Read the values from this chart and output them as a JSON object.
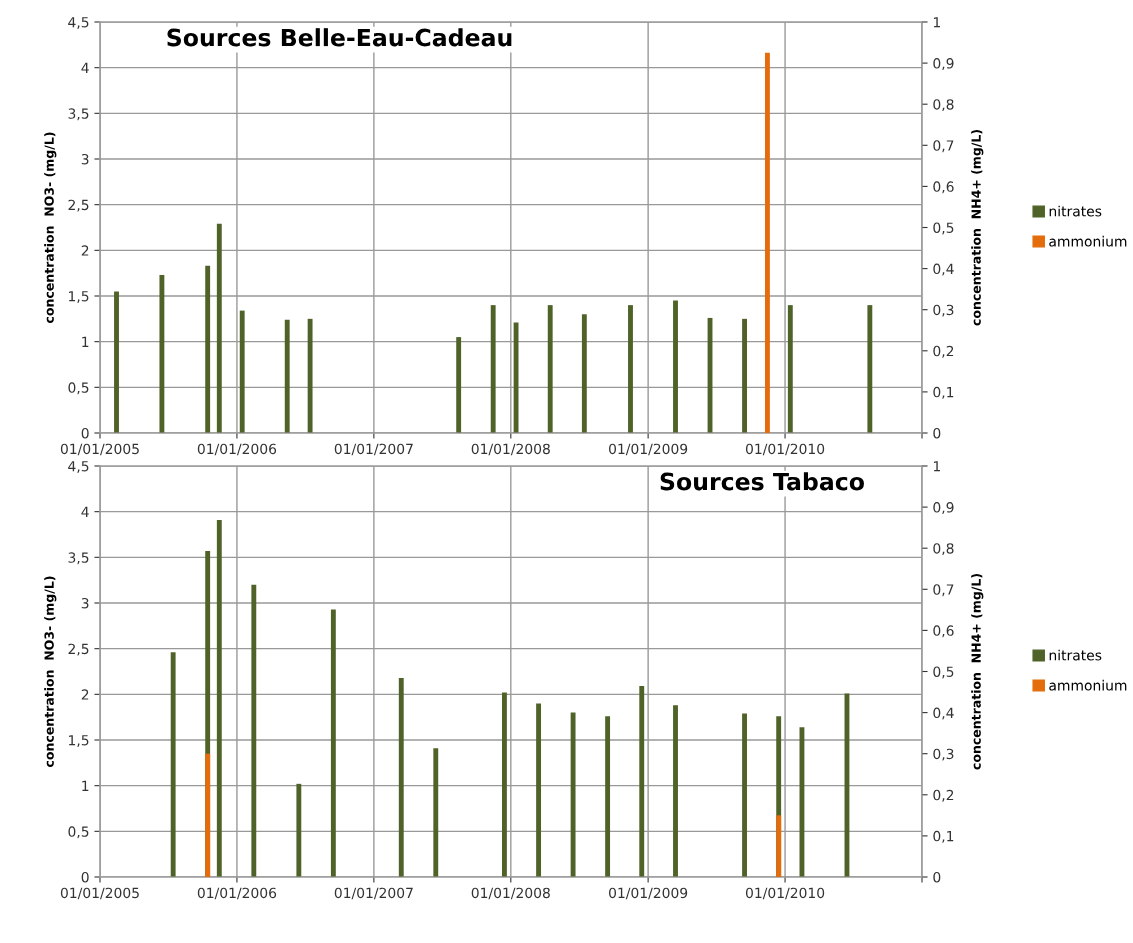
{
  "chart_data": [
    {
      "type": "bar",
      "title": "Sources Belle-Eau-Cadeau",
      "ylabel": "concentration  NO3- (mg/L)",
      "y2label": "concentration  NH4+ (mg/L)",
      "xlim": [
        "2005-01-01",
        "2011-01-01"
      ],
      "xticks": [
        {
          "value": "2005-01-01",
          "label": "01/01/2005"
        },
        {
          "value": "2006-01-01",
          "label": "01/01/2006"
        },
        {
          "value": "2007-01-01",
          "label": "01/01/2007"
        },
        {
          "value": "2008-01-01",
          "label": "01/01/2008"
        },
        {
          "value": "2009-01-01",
          "label": "01/01/2009"
        },
        {
          "value": "2010-01-01",
          "label": "01/01/2010"
        },
        {
          "value": "2011-01-01",
          "label": null
        }
      ],
      "ylim": [
        0,
        4.5
      ],
      "yticks": [
        0,
        {
          "value": 0.5,
          "label": "0,5"
        },
        1,
        {
          "value": 1.5,
          "label": "1,5"
        },
        2,
        {
          "value": 2.5,
          "label": "2,5"
        },
        3,
        {
          "value": 3.5,
          "label": "3,5"
        },
        4,
        {
          "value": 4.5,
          "label": "4,5"
        }
      ],
      "y2lim": [
        0,
        1
      ],
      "y2ticks": [
        0,
        {
          "value": 0.1,
          "label": "0,1"
        },
        {
          "value": 0.2,
          "label": "0,2"
        },
        {
          "value": 0.3,
          "label": "0,3"
        },
        {
          "value": 0.4,
          "label": "0,4"
        },
        {
          "value": 0.5,
          "label": "0,5"
        },
        {
          "value": 0.6,
          "label": "0,6"
        },
        {
          "value": 0.7,
          "label": "0,7"
        },
        {
          "value": 0.8,
          "label": "0,8"
        },
        {
          "value": 0.9,
          "label": "0,9"
        },
        1
      ],
      "grid": true,
      "legend": "right",
      "series": [
        {
          "name": "nitrates",
          "color": "#4f6228",
          "axis": "y",
          "x": [
            "2005-02-14",
            "2005-06-15",
            "2005-10-15",
            "2005-11-15",
            "2006-01-15",
            "2006-05-15",
            "2006-07-15",
            "2007-08-15",
            "2007-11-15",
            "2008-01-15",
            "2008-04-15",
            "2008-07-15",
            "2008-11-15",
            "2009-03-15",
            "2009-06-15",
            "2009-09-15",
            "2010-01-15",
            "2010-08-15"
          ],
          "values": [
            1.55,
            1.73,
            1.83,
            2.29,
            1.34,
            1.24,
            1.25,
            1.05,
            1.4,
            1.21,
            1.4,
            1.3,
            1.4,
            1.45,
            1.26,
            1.25,
            1.4,
            1.4
          ]
        },
        {
          "name": "ammonium",
          "color": "#e46c0a",
          "axis": "y2",
          "x": [
            "2009-11-15"
          ],
          "values": [
            0.925
          ]
        }
      ]
    },
    {
      "type": "bar",
      "title": "Sources Tabaco",
      "ylabel": "concentration  NO3- (mg/L)",
      "y2label": "concentration  NH4+ (mg/L)",
      "xlim": [
        "2005-01-01",
        "2011-01-01"
      ],
      "xticks": [
        {
          "value": "2005-01-01",
          "label": "01/01/2005"
        },
        {
          "value": "2006-01-01",
          "label": "01/01/2006"
        },
        {
          "value": "2007-01-01",
          "label": "01/01/2007"
        },
        {
          "value": "2008-01-01",
          "label": "01/01/2008"
        },
        {
          "value": "2009-01-01",
          "label": "01/01/2009"
        },
        {
          "value": "2010-01-01",
          "label": "01/01/2010"
        },
        {
          "value": "2011-01-01",
          "label": null
        }
      ],
      "ylim": [
        0,
        4.5
      ],
      "yticks": [
        0,
        {
          "value": 0.5,
          "label": "0,5"
        },
        1,
        {
          "value": 1.5,
          "label": "1,5"
        },
        2,
        {
          "value": 2.5,
          "label": "2,5"
        },
        3,
        {
          "value": 3.5,
          "label": "3,5"
        },
        4,
        {
          "value": 4.5,
          "label": "4,5"
        }
      ],
      "y2lim": [
        0,
        1
      ],
      "y2ticks": [
        0,
        {
          "value": 0.1,
          "label": "0,1"
        },
        {
          "value": 0.2,
          "label": "0,2"
        },
        {
          "value": 0.3,
          "label": "0,3"
        },
        {
          "value": 0.4,
          "label": "0,4"
        },
        {
          "value": 0.5,
          "label": "0,5"
        },
        {
          "value": 0.6,
          "label": "0,6"
        },
        {
          "value": 0.7,
          "label": "0,7"
        },
        {
          "value": 0.8,
          "label": "0,8"
        },
        {
          "value": 0.9,
          "label": "0,9"
        },
        1
      ],
      "grid": true,
      "legend": "right",
      "series": [
        {
          "name": "nitrates",
          "color": "#4f6228",
          "axis": "y",
          "x": [
            "2005-07-15",
            "2005-10-15",
            "2005-11-15",
            "2006-02-15",
            "2006-06-15",
            "2006-09-15",
            "2007-03-15",
            "2007-06-15",
            "2007-12-15",
            "2008-03-15",
            "2008-06-15",
            "2008-09-15",
            "2008-12-15",
            "2009-03-15",
            "2009-09-15",
            "2009-12-15",
            "2010-02-15",
            "2010-06-15"
          ],
          "values": [
            2.46,
            3.57,
            3.91,
            3.2,
            1.02,
            2.93,
            2.18,
            1.41,
            2.02,
            1.9,
            1.8,
            1.76,
            2.09,
            1.88,
            1.79,
            1.76,
            1.64,
            2.01
          ]
        },
        {
          "name": "ammonium",
          "color": "#e46c0a",
          "axis": "y2",
          "x": [
            "2005-10-15",
            "2009-12-15"
          ],
          "values": [
            0.3,
            0.15
          ]
        }
      ]
    }
  ]
}
